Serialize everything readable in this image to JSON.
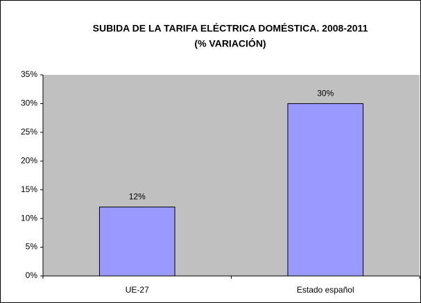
{
  "chart_data": {
    "type": "bar",
    "title": [
      "SUBIDA DE LA TARIFA ELÉCTRICA DOMÉSTICA. 2008-2011",
      "(% VARIACIÓN)"
    ],
    "categories": [
      "UE-27",
      "Estado español"
    ],
    "values": [
      12,
      30
    ],
    "value_labels": [
      "12%",
      "30%"
    ],
    "color": "#9999ff",
    "ylim": [
      0,
      35
    ],
    "yticks": [
      {
        "value": 0,
        "label": "0%"
      },
      {
        "value": 5,
        "label": "5%"
      },
      {
        "value": 10,
        "label": "10%"
      },
      {
        "value": 15,
        "label": "15%"
      },
      {
        "value": 20,
        "label": "20%"
      },
      {
        "value": 25,
        "label": "25%"
      },
      {
        "value": 30,
        "label": "30%"
      },
      {
        "value": 35,
        "label": "35%"
      }
    ],
    "grid": false
  }
}
